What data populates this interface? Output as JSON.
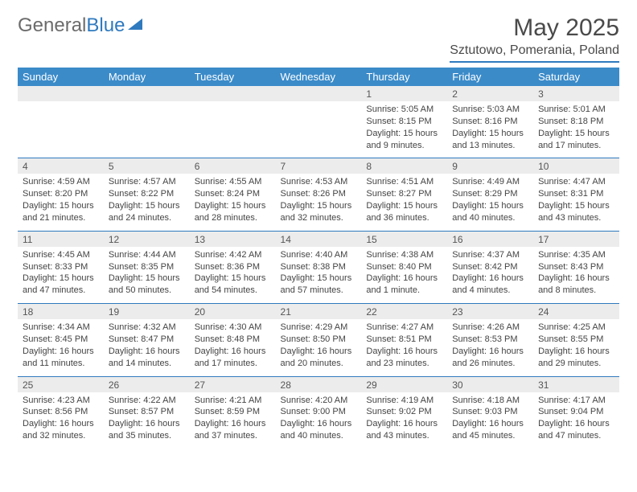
{
  "brand": {
    "name_part1": "General",
    "name_part2": "Blue"
  },
  "title": "May 2025",
  "location": "Sztutowo, Pomerania, Poland",
  "colors": {
    "header_bar": "#3b8bc9",
    "accent_line": "#2f7abf",
    "daynum_bg": "#ececec",
    "text": "#3a3a3a",
    "background": "#ffffff"
  },
  "typography": {
    "title_fontsize": 30,
    "location_fontsize": 16,
    "dow_fontsize": 13,
    "daynum_fontsize": 12,
    "detail_fontsize": 11
  },
  "days_of_week": [
    "Sunday",
    "Monday",
    "Tuesday",
    "Wednesday",
    "Thursday",
    "Friday",
    "Saturday"
  ],
  "weeks": [
    [
      null,
      null,
      null,
      null,
      {
        "n": "1",
        "sunrise": "Sunrise: 5:05 AM",
        "sunset": "Sunset: 8:15 PM",
        "daylight": "Daylight: 15 hours and 9 minutes."
      },
      {
        "n": "2",
        "sunrise": "Sunrise: 5:03 AM",
        "sunset": "Sunset: 8:16 PM",
        "daylight": "Daylight: 15 hours and 13 minutes."
      },
      {
        "n": "3",
        "sunrise": "Sunrise: 5:01 AM",
        "sunset": "Sunset: 8:18 PM",
        "daylight": "Daylight: 15 hours and 17 minutes."
      }
    ],
    [
      {
        "n": "4",
        "sunrise": "Sunrise: 4:59 AM",
        "sunset": "Sunset: 8:20 PM",
        "daylight": "Daylight: 15 hours and 21 minutes."
      },
      {
        "n": "5",
        "sunrise": "Sunrise: 4:57 AM",
        "sunset": "Sunset: 8:22 PM",
        "daylight": "Daylight: 15 hours and 24 minutes."
      },
      {
        "n": "6",
        "sunrise": "Sunrise: 4:55 AM",
        "sunset": "Sunset: 8:24 PM",
        "daylight": "Daylight: 15 hours and 28 minutes."
      },
      {
        "n": "7",
        "sunrise": "Sunrise: 4:53 AM",
        "sunset": "Sunset: 8:26 PM",
        "daylight": "Daylight: 15 hours and 32 minutes."
      },
      {
        "n": "8",
        "sunrise": "Sunrise: 4:51 AM",
        "sunset": "Sunset: 8:27 PM",
        "daylight": "Daylight: 15 hours and 36 minutes."
      },
      {
        "n": "9",
        "sunrise": "Sunrise: 4:49 AM",
        "sunset": "Sunset: 8:29 PM",
        "daylight": "Daylight: 15 hours and 40 minutes."
      },
      {
        "n": "10",
        "sunrise": "Sunrise: 4:47 AM",
        "sunset": "Sunset: 8:31 PM",
        "daylight": "Daylight: 15 hours and 43 minutes."
      }
    ],
    [
      {
        "n": "11",
        "sunrise": "Sunrise: 4:45 AM",
        "sunset": "Sunset: 8:33 PM",
        "daylight": "Daylight: 15 hours and 47 minutes."
      },
      {
        "n": "12",
        "sunrise": "Sunrise: 4:44 AM",
        "sunset": "Sunset: 8:35 PM",
        "daylight": "Daylight: 15 hours and 50 minutes."
      },
      {
        "n": "13",
        "sunrise": "Sunrise: 4:42 AM",
        "sunset": "Sunset: 8:36 PM",
        "daylight": "Daylight: 15 hours and 54 minutes."
      },
      {
        "n": "14",
        "sunrise": "Sunrise: 4:40 AM",
        "sunset": "Sunset: 8:38 PM",
        "daylight": "Daylight: 15 hours and 57 minutes."
      },
      {
        "n": "15",
        "sunrise": "Sunrise: 4:38 AM",
        "sunset": "Sunset: 8:40 PM",
        "daylight": "Daylight: 16 hours and 1 minute."
      },
      {
        "n": "16",
        "sunrise": "Sunrise: 4:37 AM",
        "sunset": "Sunset: 8:42 PM",
        "daylight": "Daylight: 16 hours and 4 minutes."
      },
      {
        "n": "17",
        "sunrise": "Sunrise: 4:35 AM",
        "sunset": "Sunset: 8:43 PM",
        "daylight": "Daylight: 16 hours and 8 minutes."
      }
    ],
    [
      {
        "n": "18",
        "sunrise": "Sunrise: 4:34 AM",
        "sunset": "Sunset: 8:45 PM",
        "daylight": "Daylight: 16 hours and 11 minutes."
      },
      {
        "n": "19",
        "sunrise": "Sunrise: 4:32 AM",
        "sunset": "Sunset: 8:47 PM",
        "daylight": "Daylight: 16 hours and 14 minutes."
      },
      {
        "n": "20",
        "sunrise": "Sunrise: 4:30 AM",
        "sunset": "Sunset: 8:48 PM",
        "daylight": "Daylight: 16 hours and 17 minutes."
      },
      {
        "n": "21",
        "sunrise": "Sunrise: 4:29 AM",
        "sunset": "Sunset: 8:50 PM",
        "daylight": "Daylight: 16 hours and 20 minutes."
      },
      {
        "n": "22",
        "sunrise": "Sunrise: 4:27 AM",
        "sunset": "Sunset: 8:51 PM",
        "daylight": "Daylight: 16 hours and 23 minutes."
      },
      {
        "n": "23",
        "sunrise": "Sunrise: 4:26 AM",
        "sunset": "Sunset: 8:53 PM",
        "daylight": "Daylight: 16 hours and 26 minutes."
      },
      {
        "n": "24",
        "sunrise": "Sunrise: 4:25 AM",
        "sunset": "Sunset: 8:55 PM",
        "daylight": "Daylight: 16 hours and 29 minutes."
      }
    ],
    [
      {
        "n": "25",
        "sunrise": "Sunrise: 4:23 AM",
        "sunset": "Sunset: 8:56 PM",
        "daylight": "Daylight: 16 hours and 32 minutes."
      },
      {
        "n": "26",
        "sunrise": "Sunrise: 4:22 AM",
        "sunset": "Sunset: 8:57 PM",
        "daylight": "Daylight: 16 hours and 35 minutes."
      },
      {
        "n": "27",
        "sunrise": "Sunrise: 4:21 AM",
        "sunset": "Sunset: 8:59 PM",
        "daylight": "Daylight: 16 hours and 37 minutes."
      },
      {
        "n": "28",
        "sunrise": "Sunrise: 4:20 AM",
        "sunset": "Sunset: 9:00 PM",
        "daylight": "Daylight: 16 hours and 40 minutes."
      },
      {
        "n": "29",
        "sunrise": "Sunrise: 4:19 AM",
        "sunset": "Sunset: 9:02 PM",
        "daylight": "Daylight: 16 hours and 43 minutes."
      },
      {
        "n": "30",
        "sunrise": "Sunrise: 4:18 AM",
        "sunset": "Sunset: 9:03 PM",
        "daylight": "Daylight: 16 hours and 45 minutes."
      },
      {
        "n": "31",
        "sunrise": "Sunrise: 4:17 AM",
        "sunset": "Sunset: 9:04 PM",
        "daylight": "Daylight: 16 hours and 47 minutes."
      }
    ]
  ]
}
